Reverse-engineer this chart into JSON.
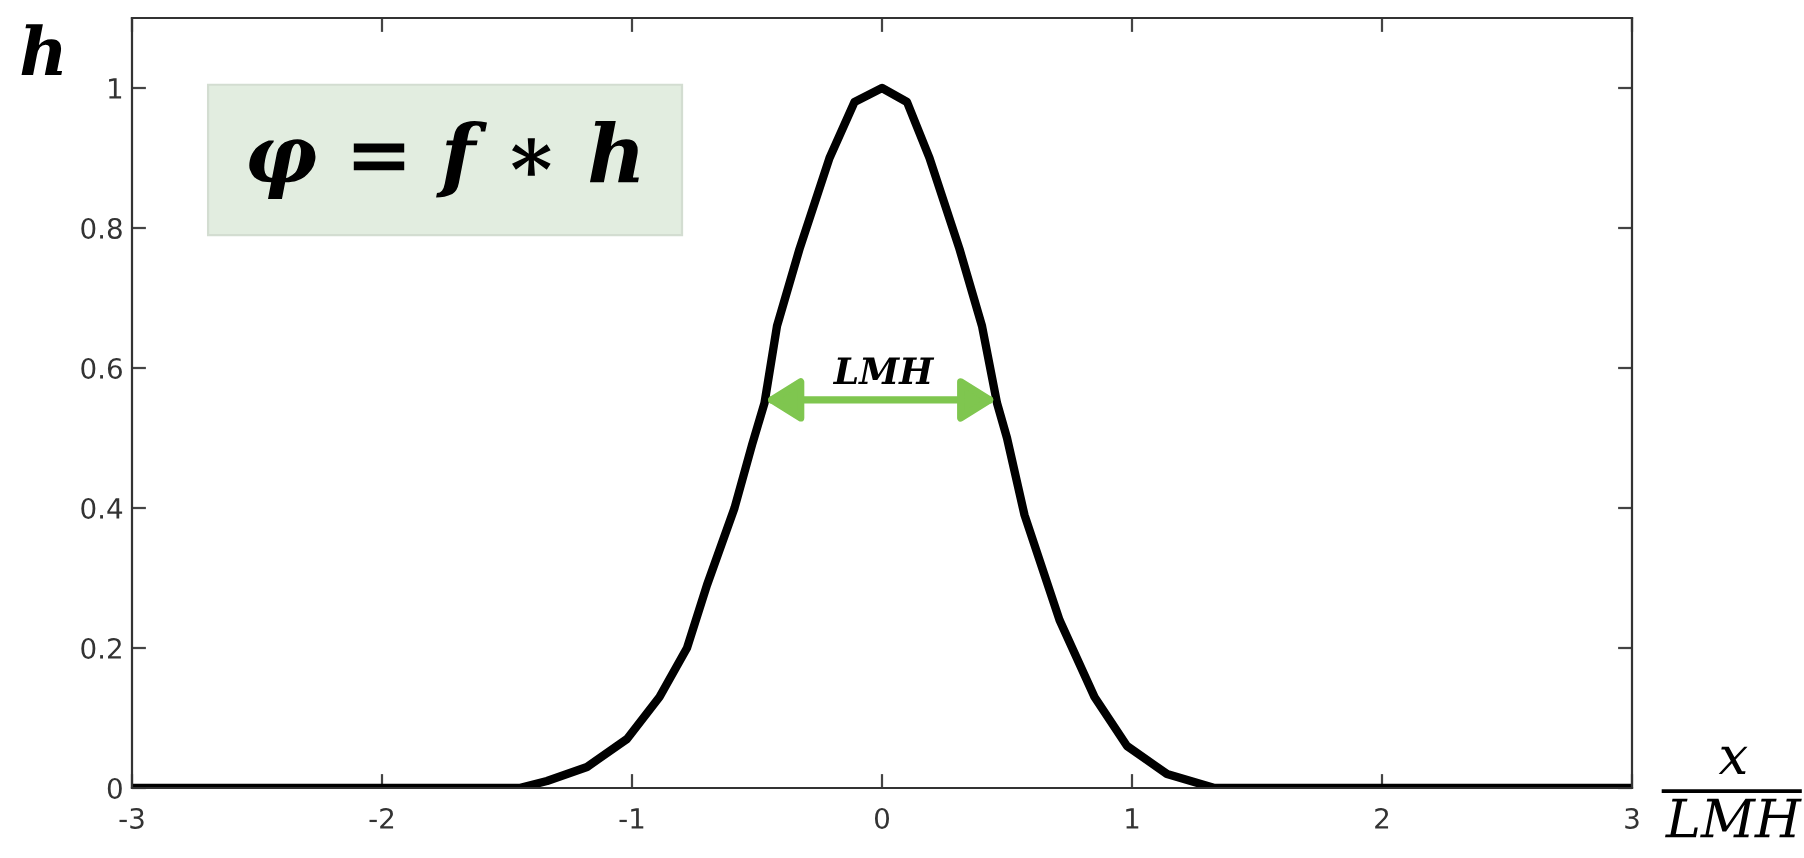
{
  "chart_data": {
    "type": "line",
    "xlabel": "x\nLMH",
    "ylabel": "h",
    "x": [
      -3,
      -1.45,
      -1.34,
      -1.18,
      -1.02,
      -0.89,
      -0.78,
      -0.7,
      -0.59,
      -0.52,
      -0.47,
      -0.42,
      -0.33,
      -0.21,
      -0.11,
      0,
      0.1,
      0.19,
      0.31,
      0.4,
      0.46,
      0.5,
      0.57,
      0.71,
      0.85,
      0.98,
      1.14,
      1.33,
      1.41,
      3
    ],
    "series": [
      {
        "color": "#000000",
        "values": [
          0,
          0,
          0.01,
          0.03,
          0.07,
          0.13,
          0.2,
          0.29,
          0.4,
          0.49,
          0.55,
          0.66,
          0.77,
          0.9,
          0.98,
          1,
          0.98,
          0.9,
          0.77,
          0.66,
          0.55,
          0.5,
          0.39,
          0.24,
          0.13,
          0.06,
          0.02,
          0,
          0,
          0
        ]
      }
    ],
    "xlim": [
      -3,
      3
    ],
    "ylim": [
      0,
      1.1
    ],
    "xticks": [
      -3,
      -2,
      -1,
      0,
      1,
      2,
      3
    ],
    "yticks": [
      0,
      0.2,
      0.4,
      0.6,
      0.8,
      1
    ],
    "marker": "none",
    "line_style": "solid",
    "annotations": [
      "φ = f ∗ h",
      "LMH"
    ]
  }
}
